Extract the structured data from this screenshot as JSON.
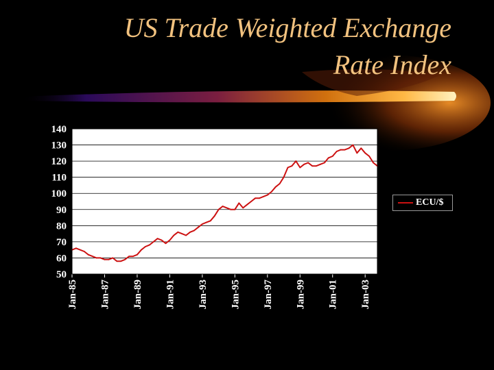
{
  "slide": {
    "title_line1": "US Trade Weighted Exchange",
    "title_line2": "Rate Index",
    "title_color": "#f2c27f",
    "background_color": "#000000",
    "accent_swoosh_colors": [
      "#ffe8a0",
      "#f08a16",
      "#8a2a00",
      "#3a0a6a"
    ]
  },
  "legend": {
    "label": "ECU/$",
    "color": "#cc1111",
    "placement": "right"
  },
  "chart_data": {
    "type": "line",
    "title": "",
    "xlabel": "",
    "ylabel": "",
    "ylim": [
      50,
      140
    ],
    "yticks": [
      50,
      60,
      70,
      80,
      90,
      100,
      110,
      120,
      130,
      140
    ],
    "xlim": [
      1985.0,
      2003.75
    ],
    "xticks": [
      "Jan-85",
      "Jan-87",
      "Jan-89",
      "Jan-91",
      "Jan-93",
      "Jan-95",
      "Jan-97",
      "Jan-99",
      "Jan-01",
      "Jan-03"
    ],
    "grid": "horizontal",
    "series": [
      {
        "name": "ECU/$",
        "color": "#cc1111",
        "x": [
          1985.0,
          1985.25,
          1985.5,
          1985.75,
          1986.0,
          1986.25,
          1986.5,
          1986.75,
          1987.0,
          1987.25,
          1987.5,
          1987.75,
          1988.0,
          1988.25,
          1988.5,
          1988.75,
          1989.0,
          1989.25,
          1989.5,
          1989.75,
          1990.0,
          1990.25,
          1990.5,
          1990.75,
          1991.0,
          1991.25,
          1991.5,
          1991.75,
          1992.0,
          1992.25,
          1992.5,
          1992.75,
          1993.0,
          1993.25,
          1993.5,
          1993.75,
          1994.0,
          1994.25,
          1994.5,
          1994.75,
          1995.0,
          1995.25,
          1995.5,
          1995.75,
          1996.0,
          1996.25,
          1996.5,
          1996.75,
          1997.0,
          1997.25,
          1997.5,
          1997.75,
          1998.0,
          1998.25,
          1998.5,
          1998.75,
          1999.0,
          1999.25,
          1999.5,
          1999.75,
          2000.0,
          2000.25,
          2000.5,
          2000.75,
          2001.0,
          2001.25,
          2001.5,
          2001.75,
          2002.0,
          2002.25,
          2002.5,
          2002.75,
          2003.0,
          2003.25,
          2003.5,
          2003.75
        ],
        "values": [
          65,
          66,
          65,
          64,
          62,
          61,
          60,
          60,
          59,
          59,
          60,
          58,
          58,
          59,
          61,
          61,
          62,
          65,
          67,
          68,
          70,
          72,
          71,
          69,
          71,
          74,
          76,
          75,
          74,
          76,
          77,
          79,
          81,
          82,
          83,
          86,
          90,
          92,
          91,
          90,
          90,
          94,
          91,
          93,
          95,
          97,
          97,
          98,
          99,
          101,
          104,
          106,
          110,
          116,
          117,
          120,
          116,
          118,
          119,
          117,
          117,
          118,
          119,
          122,
          123,
          126,
          127,
          127,
          128,
          130,
          125,
          128,
          125,
          123,
          119,
          117
        ]
      }
    ]
  }
}
